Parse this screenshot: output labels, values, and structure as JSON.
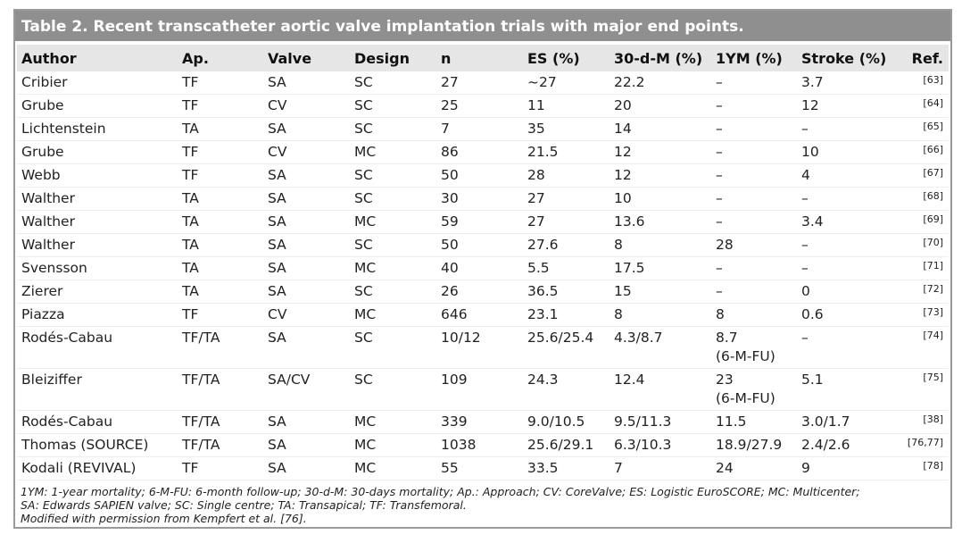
{
  "table": {
    "title": "Table 2. Recent transcatheter aortic valve implantation trials with major end points.",
    "columns": [
      "Author",
      "Ap.",
      "Valve",
      "Design",
      "n",
      "ES (%)",
      "30-d-M (%)",
      "1YM (%)",
      "Stroke (%)",
      "Ref."
    ],
    "rows": [
      [
        "Cribier",
        "TF",
        "SA",
        "SC",
        "27",
        "~27",
        "22.2",
        "–",
        "3.7",
        "[63]"
      ],
      [
        "Grube",
        "TF",
        "CV",
        "SC",
        "25",
        "11",
        "20",
        "–",
        "12",
        "[64]"
      ],
      [
        "Lichtenstein",
        "TA",
        "SA",
        "SC",
        "7",
        "35",
        "14",
        "–",
        "–",
        "[65]"
      ],
      [
        "Grube",
        "TF",
        "CV",
        "MC",
        "86",
        "21.5",
        "12",
        "–",
        "10",
        "[66]"
      ],
      [
        "Webb",
        "TF",
        "SA",
        "SC",
        "50",
        "28",
        "12",
        "–",
        "4",
        "[67]"
      ],
      [
        "Walther",
        "TA",
        "SA",
        "SC",
        "30",
        "27",
        "10",
        "–",
        "–",
        "[68]"
      ],
      [
        "Walther",
        "TA",
        "SA",
        "MC",
        "59",
        "27",
        "13.6",
        "–",
        "3.4",
        "[69]"
      ],
      [
        "Walther",
        "TA",
        "SA",
        "SC",
        "50",
        "27.6",
        "8",
        "28",
        "–",
        "[70]"
      ],
      [
        "Svensson",
        "TA",
        "SA",
        "MC",
        "40",
        "5.5",
        "17.5",
        "–",
        "–",
        "[71]"
      ],
      [
        "Zierer",
        "TA",
        "SA",
        "SC",
        "26",
        "36.5",
        "15",
        "–",
        "0",
        "[72]"
      ],
      [
        "Piazza",
        "TF",
        "CV",
        "MC",
        "646",
        "23.1",
        "8",
        "8",
        "0.6",
        "[73]"
      ],
      [
        "Rodés-Cabau",
        "TF/TA",
        "SA",
        "SC",
        "10/12",
        "25.6/25.4",
        "4.3/8.7",
        "8.7\n(6-M-FU)",
        "–",
        "[74]"
      ],
      [
        "Bleiziffer",
        "TF/TA",
        "SA/CV",
        "SC",
        "109",
        "24.3",
        "12.4",
        "23\n(6-M-FU)",
        "5.1",
        "[75]"
      ],
      [
        "Rodés-Cabau",
        "TF/TA",
        "SA",
        "MC",
        "339",
        "9.0/10.5",
        "9.5/11.3",
        "11.5",
        "3.0/1.7",
        "[38]"
      ],
      [
        "Thomas (SOURCE)",
        "TF/TA",
        "SA",
        "MC",
        "1038",
        "25.6/29.1",
        "6.3/10.3",
        "18.9/27.9",
        "2.4/2.6",
        "[76,77]"
      ],
      [
        "Kodali (REVIVAL)",
        "TF",
        "SA",
        "MC",
        "55",
        "33.5",
        "7",
        "24",
        "9",
        "[78]"
      ]
    ],
    "footnote": [
      "1YM: 1-year mortality; 6-M-FU: 6-month follow-up; 30-d-M: 30-days mortality; Ap.: Approach; CV: CoreValve; ES: Logistic EuroSCORE; MC: Multicenter;",
      "SA: Edwards SAPIEN valve; SC: Single centre; TA: Transapical; TF: Transfemoral.",
      "Modified with permission from Kempfert et al. [76]."
    ]
  }
}
